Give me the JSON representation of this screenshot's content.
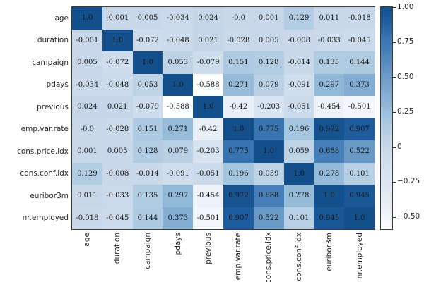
{
  "chart_data": {
    "type": "heatmap",
    "title": "",
    "description": "Correlation matrix heatmap with Blues colormap and annotated coefficients",
    "variables": [
      "age",
      "duration",
      "campaign",
      "pdays",
      "previous",
      "emp.var.rate",
      "cons.price.idx",
      "cons.conf.idx",
      "euribor3m",
      "nr.employed"
    ],
    "matrix": [
      [
        "1.0",
        "-0.001",
        "0.005",
        "-0.034",
        "0.024",
        "-0.0",
        "0.001",
        "0.129",
        "0.011",
        "-0.018"
      ],
      [
        "-0.001",
        "1.0",
        "-0.072",
        "-0.048",
        "0.021",
        "-0.028",
        "0.005",
        "-0.008",
        "-0.033",
        "-0.045"
      ],
      [
        "0.005",
        "-0.072",
        "1.0",
        "0.053",
        "-0.079",
        "0.151",
        "0.128",
        "-0.014",
        "0.135",
        "0.144"
      ],
      [
        "-0.034",
        "-0.048",
        "0.053",
        "1.0",
        "-0.588",
        "0.271",
        "0.079",
        "-0.091",
        "0.297",
        "0.373"
      ],
      [
        "0.024",
        "0.021",
        "-0.079",
        "-0.588",
        "1.0",
        "-0.42",
        "-0.203",
        "-0.051",
        "-0.454",
        "-0.501"
      ],
      [
        "-0.0",
        "-0.028",
        "0.151",
        "0.271",
        "-0.42",
        "1.0",
        "0.775",
        "0.196",
        "0.972",
        "0.907"
      ],
      [
        "0.001",
        "0.005",
        "0.128",
        "0.079",
        "-0.203",
        "0.775",
        "1.0",
        "0.059",
        "0.688",
        "0.522"
      ],
      [
        "0.129",
        "-0.008",
        "-0.014",
        "-0.091",
        "-0.051",
        "0.196",
        "0.059",
        "1.0",
        "0.278",
        "0.101"
      ],
      [
        "0.011",
        "-0.033",
        "0.135",
        "0.297",
        "-0.454",
        "0.972",
        "0.688",
        "0.278",
        "1.0",
        "0.945"
      ],
      [
        "-0.018",
        "-0.045",
        "0.144",
        "0.373",
        "-0.501",
        "0.907",
        "0.522",
        "0.101",
        "0.945",
        "1.0"
      ]
    ],
    "vmin": -0.588,
    "vmax": 1.0,
    "grid": false,
    "legend_position": "right-colorbar",
    "colormap": {
      "name": "Blues",
      "stops": [
        {
          "t": 0.0,
          "rgb": [
            253,
            254,
            255
          ]
        },
        {
          "t": 0.11,
          "rgb": [
            232,
            238,
            246
          ]
        },
        {
          "t": 0.25,
          "rgb": [
            214,
            227,
            240
          ]
        },
        {
          "t": 0.37,
          "rgb": [
            201,
            216,
            233
          ]
        },
        {
          "t": 0.5,
          "rgb": [
            163,
            197,
            223
          ]
        },
        {
          "t": 0.62,
          "rgb": [
            127,
            170,
            208
          ]
        },
        {
          "t": 0.73,
          "rgb": [
            96,
            146,
            193
          ]
        },
        {
          "t": 0.81,
          "rgb": [
            68,
            125,
            182
          ]
        },
        {
          "t": 0.86,
          "rgb": [
            56,
            116,
            176
          ]
        },
        {
          "t": 0.94,
          "rgb": [
            31,
            92,
            158
          ]
        },
        {
          "t": 1.0,
          "rgb": [
            19,
            79,
            139
          ]
        }
      ]
    },
    "colorbar": {
      "ticks": [
        {
          "label": "1.00",
          "value": 1.0
        },
        {
          "label": "0.75",
          "value": 0.75
        },
        {
          "label": "0.50",
          "value": 0.5
        },
        {
          "label": "0.25",
          "value": 0.25
        },
        {
          "label": "0",
          "value": 0.0
        },
        {
          "label": "−0.25",
          "value": -0.25
        },
        {
          "label": "−0.50",
          "value": -0.5
        }
      ]
    },
    "colors": {
      "annotation_text": "#161616",
      "axis_label_text": "#262626",
      "spine": "#3c3c3c",
      "background": "#ffffff"
    }
  }
}
